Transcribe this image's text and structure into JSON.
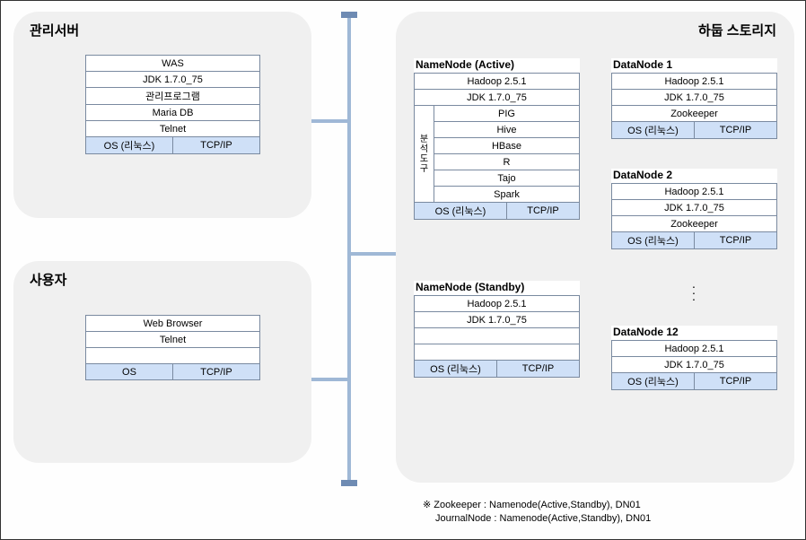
{
  "titles": {
    "mgmt": "관리서버",
    "user": "사용자",
    "hadoop": "하둡 스토리지"
  },
  "mgmt": {
    "r0": "WAS",
    "r1": "JDK 1.7.0_75",
    "r2": "관리프로그램",
    "r3": "Maria DB",
    "r4": "Telnet",
    "os": "OS (리눅스)",
    "net": "TCP/IP"
  },
  "user": {
    "r0": "Web Browser",
    "r1": "Telnet",
    "r2": "",
    "os": "OS",
    "net": "TCP/IP"
  },
  "nnActive": {
    "title": "NameNode  (Active)",
    "r0": "Hadoop 2.5.1",
    "r1": "JDK 1.7.0_75",
    "sidelabel": "분석도구",
    "t0": "PIG",
    "t1": "Hive",
    "t2": "HBase",
    "t3": "R",
    "t4": "Tajo",
    "t5": "Spark",
    "os": "OS (리눅스)",
    "net": "TCP/IP"
  },
  "nnStandby": {
    "title": "NameNode  (Standby)",
    "r0": "Hadoop 2.5.1",
    "r1": "JDK 1.7.0_75",
    "r2": "",
    "r3": "",
    "os": "OS (리눅스)",
    "net": "TCP/IP"
  },
  "dn1": {
    "title": "DataNode  1",
    "r0": "Hadoop 2.5.1",
    "r1": "JDK 1.7.0_75",
    "r2": "Zookeeper",
    "os": "OS (리눅스)",
    "net": "TCP/IP"
  },
  "dn2": {
    "title": "DataNode  2",
    "r0": "Hadoop 2.5.1",
    "r1": "JDK 1.7.0_75",
    "r2": "Zookeeper",
    "os": "OS (리눅스)",
    "net": "TCP/IP"
  },
  "dn12": {
    "title": "DataNode  12",
    "r0": "Hadoop 2.5.1",
    "r1": "JDK 1.7.0_75",
    "os": "OS (리눅스)",
    "net": "TCP/IP"
  },
  "foot": {
    "l1": "※ Zookeeper : Namenode(Active,Standby),   DN01",
    "l2": "JournalNode : Namenode(Active,Standby),   DN01"
  },
  "colors": {
    "zone_bg": "#f0f0f0",
    "cell_border": "#7a8aa0",
    "highlight": "#cfe0f7",
    "bus": "#9fb8d6",
    "bus_cap": "#6e8bb3"
  }
}
